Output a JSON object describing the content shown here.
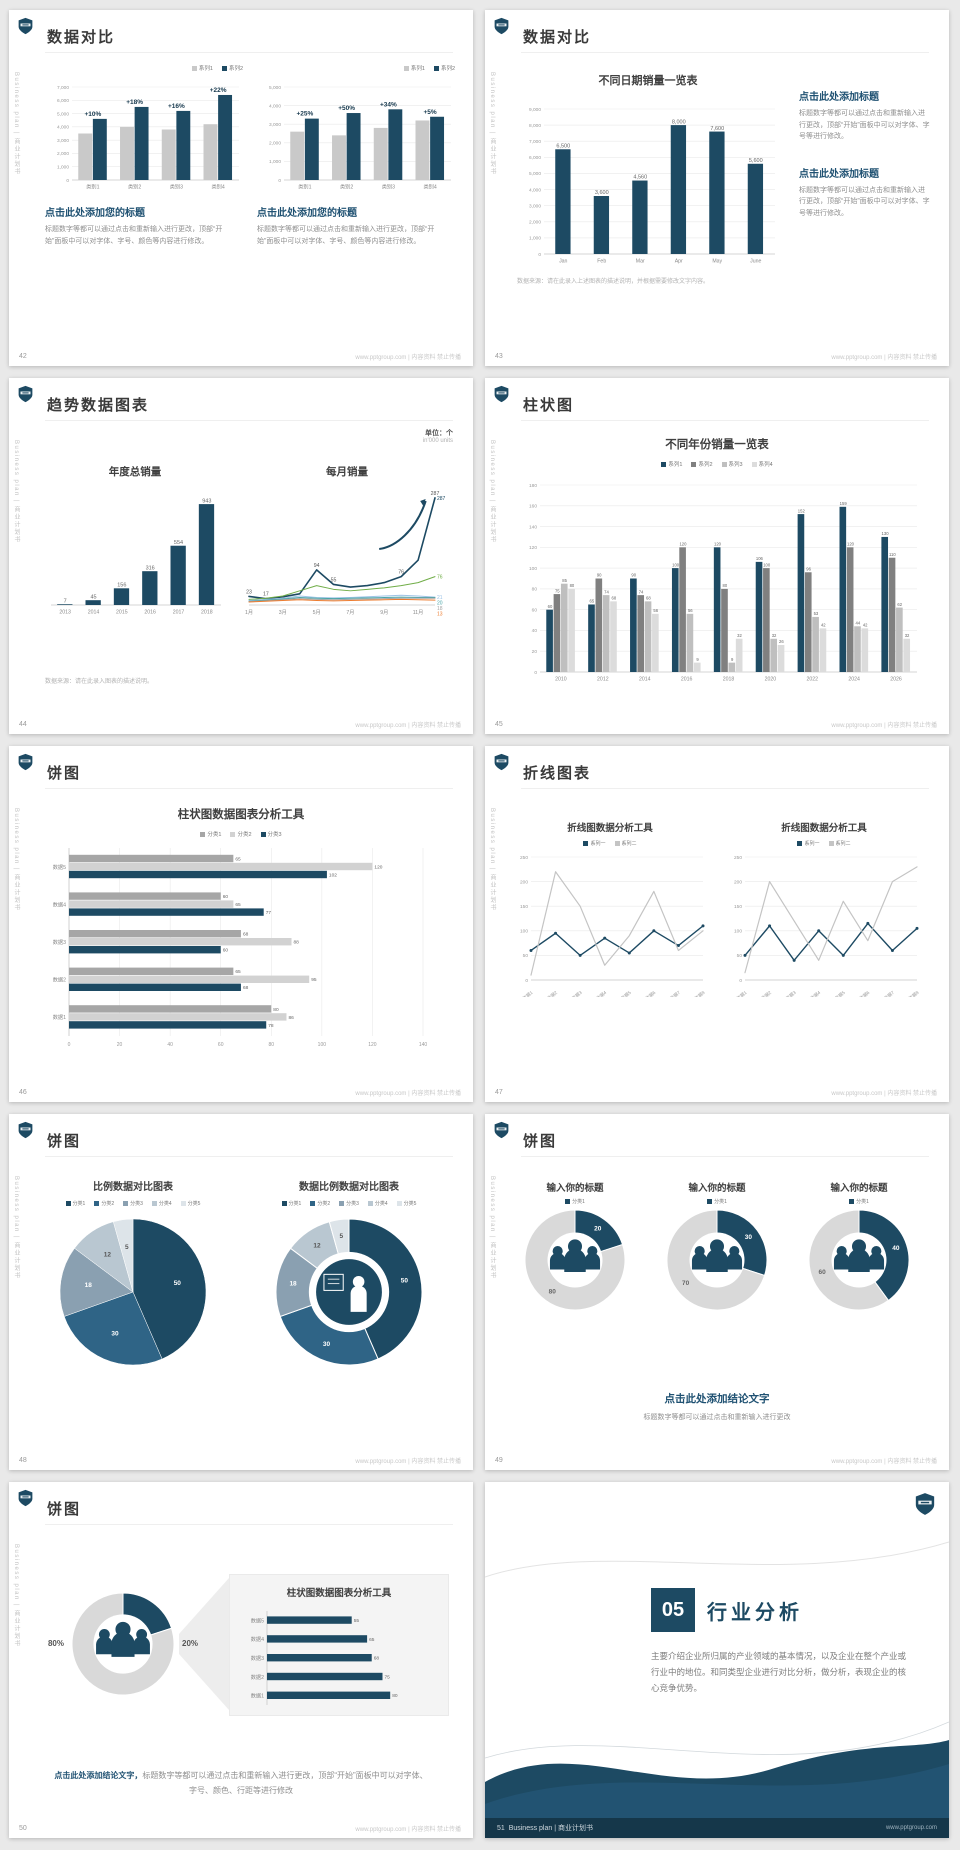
{
  "meta": {
    "side_text": "Business plan | 商业计划书",
    "watermark": "www.pptgroup.com | 内容资料 禁止传播",
    "accent_navy": "#1d4a63",
    "heading_blue": "#1f5172"
  },
  "slides": {
    "s42": {
      "page": "42",
      "title": "数据对比",
      "cols": [
        {
          "heading": "点击此处添加您的标题",
          "body": "标题数字等都可以通过点击和重新输入进行更改，顶部“开始”面板中可以对字体、字号、颜色等内容进行修改。",
          "chart": {
            "type": "groupbar",
            "categories": [
              "类别1",
              "类别2",
              "类别3",
              "类别4"
            ],
            "series": [
              {
                "name": "系列1",
                "color": "#c9c9c9",
                "values": [
                  3500,
                  4000,
                  3800,
                  4200
                ]
              },
              {
                "name": "系列2",
                "color": "#1d4a63",
                "values": [
                  4600,
                  5500,
                  5200,
                  6400
                ]
              }
            ],
            "ymax": 7000,
            "ystep": 1000,
            "yfmt": "comma",
            "show_yaxis": true,
            "group_labels": [
              "+10%",
              "+18%",
              "+16%",
              "+22%"
            ]
          }
        },
        {
          "heading": "点击此处添加您的标题",
          "body": "标题数字等都可以通过点击和重新输入进行更改，顶部“开始”面板中可以对字体、字号、颜色等内容进行修改。",
          "chart": {
            "type": "groupbar",
            "categories": [
              "类别1",
              "类别2",
              "类别3",
              "类别4"
            ],
            "series": [
              {
                "name": "系列1",
                "color": "#c9c9c9",
                "values": [
                  2600,
                  2400,
                  2800,
                  3200
                ]
              },
              {
                "name": "系列2",
                "color": "#1d4a63",
                "values": [
                  3300,
                  3600,
                  3800,
                  3400
                ]
              }
            ],
            "ymax": 5000,
            "ystep": 1000,
            "yfmt": "comma",
            "show_yaxis": true,
            "group_labels": [
              "+25%",
              "+50%",
              "+34%",
              "+5%"
            ]
          }
        }
      ]
    },
    "s43": {
      "page": "43",
      "title": "数据对比",
      "chart_title": "不同日期销量一览表",
      "note": "数据来源：请在此录入上述图表的描述说明，并根据需要修改文字内容。",
      "chart": {
        "type": "groupbar",
        "categories": [
          "Jan",
          "Feb",
          "Mar",
          "Apr",
          "May",
          "June"
        ],
        "series": [
          {
            "name": "销量",
            "color": "#1d4a63",
            "values": [
              6500,
              3600,
              4560,
              8000,
              7600,
              5600
            ]
          }
        ],
        "ymax": 9000,
        "ystep": 1000,
        "yfmt": "comma",
        "show_yaxis": true,
        "show_values": true,
        "value_size": 5.5
      },
      "blocks": [
        {
          "heading": "点击此处添加标题",
          "body": "标题数字等都可以通过点击和重新输入进行更改，顶部“开始”面板中可以对字体、字号等进行修改。"
        },
        {
          "heading": "点击此处添加标题",
          "body": "标题数字等都可以通过点击和重新输入进行更改，顶部“开始”面板中可以对字体、字号等进行修改。"
        }
      ]
    },
    "s44": {
      "page": "44",
      "title": "趋势数据图表",
      "unit_line1": "单位：个",
      "unit_line2": "in'000 units",
      "note": "数据来源：请在此录入图表的描述说明。",
      "left_title": "年度总销量",
      "right_title": "每月销量",
      "chart_left": {
        "type": "groupbar",
        "categories": [
          "2013",
          "2014",
          "2015",
          "2016",
          "2017",
          "2018"
        ],
        "series": [
          {
            "name": "年度总销量",
            "color": "#1d4a63",
            "values": [
              7,
              45,
              156,
              316,
              554,
              943
            ]
          }
        ],
        "ymax": 1000,
        "ystep": 250,
        "show_yaxis": false,
        "grid": false,
        "show_values": true,
        "value_size": 5.5
      },
      "chart_right": {
        "type": "line",
        "n": 12,
        "xticks": [
          {
            "i": 0,
            "label": "1月"
          },
          {
            "i": 2,
            "label": "3月"
          },
          {
            "i": 4,
            "label": "5月"
          },
          {
            "i": 6,
            "label": "7月"
          },
          {
            "i": 8,
            "label": "9月"
          },
          {
            "i": 10,
            "label": "11月"
          }
        ],
        "series": [
          {
            "name": "系列1",
            "color": "#1d4a63",
            "width": 1.6,
            "values": [
              23,
              17,
              22,
              30,
              94,
              55,
              48,
              52,
              60,
              76,
              120,
              287
            ],
            "point_labels": {
              "0": "23",
              "1": "17",
              "4": "94",
              "5": "55",
              "9": "76",
              "11": "287"
            }
          },
          {
            "name": "系列2",
            "color": "#70ad47",
            "width": 1,
            "values": [
              15,
              18,
              24,
              38,
              52,
              42,
              38,
              42,
              46,
              52,
              60,
              76
            ]
          },
          {
            "name": "系列3",
            "color": "#9dc3e6",
            "width": 1,
            "values": [
              12,
              15,
              18,
              24,
              20,
              19,
              20,
              22,
              24,
              26,
              24,
              21
            ]
          },
          {
            "name": "系列4",
            "color": "#4aa5a8",
            "width": 1,
            "values": [
              10,
              13,
              16,
              20,
              18,
              17,
              18,
              19,
              20,
              21,
              20,
              20
            ]
          },
          {
            "name": "系列5",
            "color": "#a6a6a6",
            "width": 1,
            "values": [
              9,
              11,
              14,
              17,
              15,
              14,
              15,
              16,
              17,
              18,
              18,
              18
            ]
          },
          {
            "name": "系列6",
            "color": "#ed7d31",
            "width": 1,
            "values": [
              8,
              10,
              12,
              14,
              12,
              11,
              12,
              13,
              14,
              15,
              14,
              13
            ]
          }
        ],
        "ymax": 300,
        "ystep": 100,
        "show_yaxis": false,
        "grid": false,
        "end_labels": true,
        "arrow": true
      }
    },
    "s45": {
      "page": "45",
      "title": "柱状图",
      "chart_title": "不同年份销量一览表",
      "chart": {
        "type": "groupbar",
        "categories": [
          "2010",
          "2012",
          "2014",
          "2016",
          "2018",
          "2020",
          "2022",
          "2024",
          "2026"
        ],
        "series": [
          {
            "name": "系列1",
            "color": "#1d4a63",
            "values": [
              60,
              65,
              90,
              100,
              120,
              106,
              152,
              159,
              130
            ]
          },
          {
            "name": "系列2",
            "color": "#808080",
            "values": [
              75,
              90,
              74,
              120,
              80,
              100,
              96,
              120,
              110
            ]
          },
          {
            "name": "系列3",
            "color": "#bfbfbf",
            "values": [
              85,
              74,
              68,
              56,
              9,
              32,
              53,
              44,
              62
            ]
          },
          {
            "name": "系列4",
            "color": "#dcdcdc",
            "values": [
              80,
              68,
              56,
              9,
              32,
              26,
              42,
              42,
              32
            ]
          }
        ],
        "ymax": 180,
        "ystep": 20,
        "show_yaxis": true,
        "show_values": true,
        "value_size": 4.2
      }
    },
    "s46": {
      "page": "46",
      "title": "饼图",
      "chart_title": "柱状图数据图表分析工具",
      "chart": {
        "type": "hbar",
        "categories": [
          "数据5",
          "数据4",
          "数据3",
          "数据2",
          "数据1"
        ],
        "series": [
          {
            "name": "分类1",
            "color": "#a6a6a6",
            "values": [
              65,
              60,
              68,
              65,
              80
            ]
          },
          {
            "name": "分类2",
            "color": "#d2d2d2",
            "values": [
              120,
              65,
              88,
              95,
              86
            ]
          },
          {
            "name": "分类3",
            "color": "#1d4a63",
            "values": [
              102,
              77,
              60,
              68,
              78
            ]
          }
        ],
        "xmax": 140,
        "xstep": 20,
        "show_xaxis": true,
        "show_values": true
      }
    },
    "s47": {
      "page": "47",
      "title": "折线图表",
      "charts": [
        {
          "title": "折线图数据分析工具",
          "chart": {
            "type": "line",
            "categories": [
              "数据1",
              "数据2",
              "数据3",
              "数据4",
              "数据5",
              "数据6",
              "数据7",
              "数据8"
            ],
            "series": [
              {
                "name": "系列一",
                "color": "#1d4a63",
                "width": 1.4,
                "dots": true,
                "values": [
                  60,
                  95,
                  50,
                  85,
                  55,
                  100,
                  70,
                  110
                ]
              },
              {
                "name": "系列二",
                "color": "#c4c4c4",
                "width": 1.2,
                "values": [
                  10,
                  220,
                  150,
                  30,
                  90,
                  180,
                  60,
                  100
                ]
              }
            ],
            "ymax": 250,
            "ystep": 50,
            "show_yaxis": true,
            "grid": true,
            "rot_xlabels": true
          }
        },
        {
          "title": "折线图数据分析工具",
          "chart": {
            "type": "line",
            "categories": [
              "数据1",
              "数据2",
              "数据3",
              "数据4",
              "数据5",
              "数据6",
              "数据7",
              "数据8"
            ],
            "series": [
              {
                "name": "系列一",
                "color": "#1d4a63",
                "width": 1.4,
                "dots": true,
                "values": [
                  50,
                  110,
                  40,
                  100,
                  50,
                  115,
                  60,
                  105
                ]
              },
              {
                "name": "系列二",
                "color": "#c4c4c4",
                "width": 1.2,
                "values": [
                  15,
                  200,
                  120,
                  40,
                  160,
                  80,
                  200,
                  230
                ]
              }
            ],
            "ymax": 250,
            "ystep": 50,
            "show_yaxis": true,
            "grid": true,
            "rot_xlabels": true
          }
        }
      ]
    },
    "s48": {
      "page": "48",
      "title": "饼图",
      "left": {
        "title": "比例数据对比图表",
        "legend": [
          {
            "name": "分类1",
            "color": "#1d4a63"
          },
          {
            "name": "分类2",
            "color": "#2f6486"
          },
          {
            "name": "分类3",
            "color": "#8aa0b1"
          },
          {
            "name": "分类4",
            "color": "#b9c7d1"
          },
          {
            "name": "分类5",
            "color": "#dde4e9"
          }
        ],
        "chart": {
          "type": "pie",
          "values": [
            50,
            30,
            18,
            12,
            5
          ],
          "labels": [
            "50",
            "30",
            "18",
            "12",
            "5"
          ],
          "colors": [
            "#1d4a63",
            "#2f6486",
            "#8aa0b1",
            "#b9c7d1",
            "#dde4e9"
          ],
          "label_colors": [
            "#fff",
            "#fff",
            "#fff",
            "#555",
            "#555"
          ]
        }
      },
      "right": {
        "title": "数据比例数据对比图表",
        "legend": [
          {
            "name": "分类1",
            "color": "#1d4a63"
          },
          {
            "name": "分类2",
            "color": "#2f6486"
          },
          {
            "name": "分类3",
            "color": "#8aa0b1"
          },
          {
            "name": "分类4",
            "color": "#b9c7d1"
          },
          {
            "name": "分类5",
            "color": "#dde4e9"
          }
        ],
        "chart": {
          "type": "donut",
          "inner": 0.55,
          "values": [
            50,
            30,
            18,
            12,
            5
          ],
          "labels": [
            "50",
            "30",
            "18",
            "12",
            "5"
          ],
          "colors": [
            "#1d4a63",
            "#2f6486",
            "#8aa0b1",
            "#b9c7d1",
            "#dde4e9"
          ],
          "label_colors": [
            "#fff",
            "#fff",
            "#fff",
            "#555",
            "#555"
          ],
          "icon": "presenter"
        }
      }
    },
    "s49": {
      "page": "49",
      "title": "饼图",
      "items": [
        {
          "title": "输入你的标题",
          "legend": [
            {
              "name": "分类1",
              "color": "#1d4a63"
            }
          ],
          "chart": {
            "type": "donut",
            "inner": 0.55,
            "values": [
              20,
              80
            ],
            "labels": [
              "20",
              "80"
            ],
            "colors": [
              "#1d4a63",
              "#d9d9d9"
            ],
            "label_colors": [
              "#fff",
              "#666"
            ],
            "icon": "people"
          }
        },
        {
          "title": "输入你的标题",
          "legend": [
            {
              "name": "分类1",
              "color": "#1d4a63"
            }
          ],
          "chart": {
            "type": "donut",
            "inner": 0.55,
            "values": [
              30,
              70
            ],
            "labels": [
              "30",
              "70"
            ],
            "colors": [
              "#1d4a63",
              "#d9d9d9"
            ],
            "label_colors": [
              "#fff",
              "#666"
            ],
            "icon": "people"
          }
        },
        {
          "title": "输入你的标题",
          "legend": [
            {
              "name": "分类1",
              "color": "#1d4a63"
            }
          ],
          "chart": {
            "type": "donut",
            "inner": 0.55,
            "values": [
              40,
              60
            ],
            "labels": [
              "40",
              "60"
            ],
            "colors": [
              "#1d4a63",
              "#d9d9d9"
            ],
            "label_colors": [
              "#fff",
              "#666"
            ],
            "icon": "people"
          }
        }
      ],
      "conclusion_heading": "点击此处添加结论文字",
      "conclusion_body": "标题数字等都可以通过点击和重新输入进行更改"
    },
    "s50": {
      "page": "50",
      "title": "饼图",
      "donut": {
        "type": "donut",
        "inner": 0.58,
        "values": [
          20,
          80
        ],
        "labels": [
          "",
          ""
        ],
        "colors": [
          "#1d4a63",
          "#d9d9d9"
        ],
        "label_colors": [
          "#fff",
          "#666"
        ],
        "icon": "people",
        "side_labels": [
          "80%",
          "20%"
        ]
      },
      "panel_title": "柱状图数据图表分析工具",
      "panel_chart": {
        "type": "hbar",
        "categories": [
          "数据5",
          "数据4",
          "数据3",
          "数据2",
          "数据1"
        ],
        "series": [
          {
            "name": "数据",
            "color": "#1d4a63",
            "values": [
              55,
              65,
              68,
              75,
              80
            ]
          }
        ],
        "xmax": 100,
        "show_xaxis": false,
        "show_values": true
      },
      "conclusion_heading": "点击此处添加结论文字，",
      "conclusion_body": "标题数字等都可以通过点击和重新输入进行更改，顶部“开始”面板中可以对字体、字号、颜色、行距等进行修改"
    },
    "s51": {
      "page": "51",
      "number": "05",
      "title": "行业分析",
      "body": "主要介绍企业所归属的产业领域的基本情况，以及企业在整个产业或行业中的地位。和同类型企业进行对比分析，做分析，表现企业的核心竞争优势。",
      "footer_left": "Business plan | 商业计划书",
      "footer_right": "www.pptgroup.com"
    }
  }
}
